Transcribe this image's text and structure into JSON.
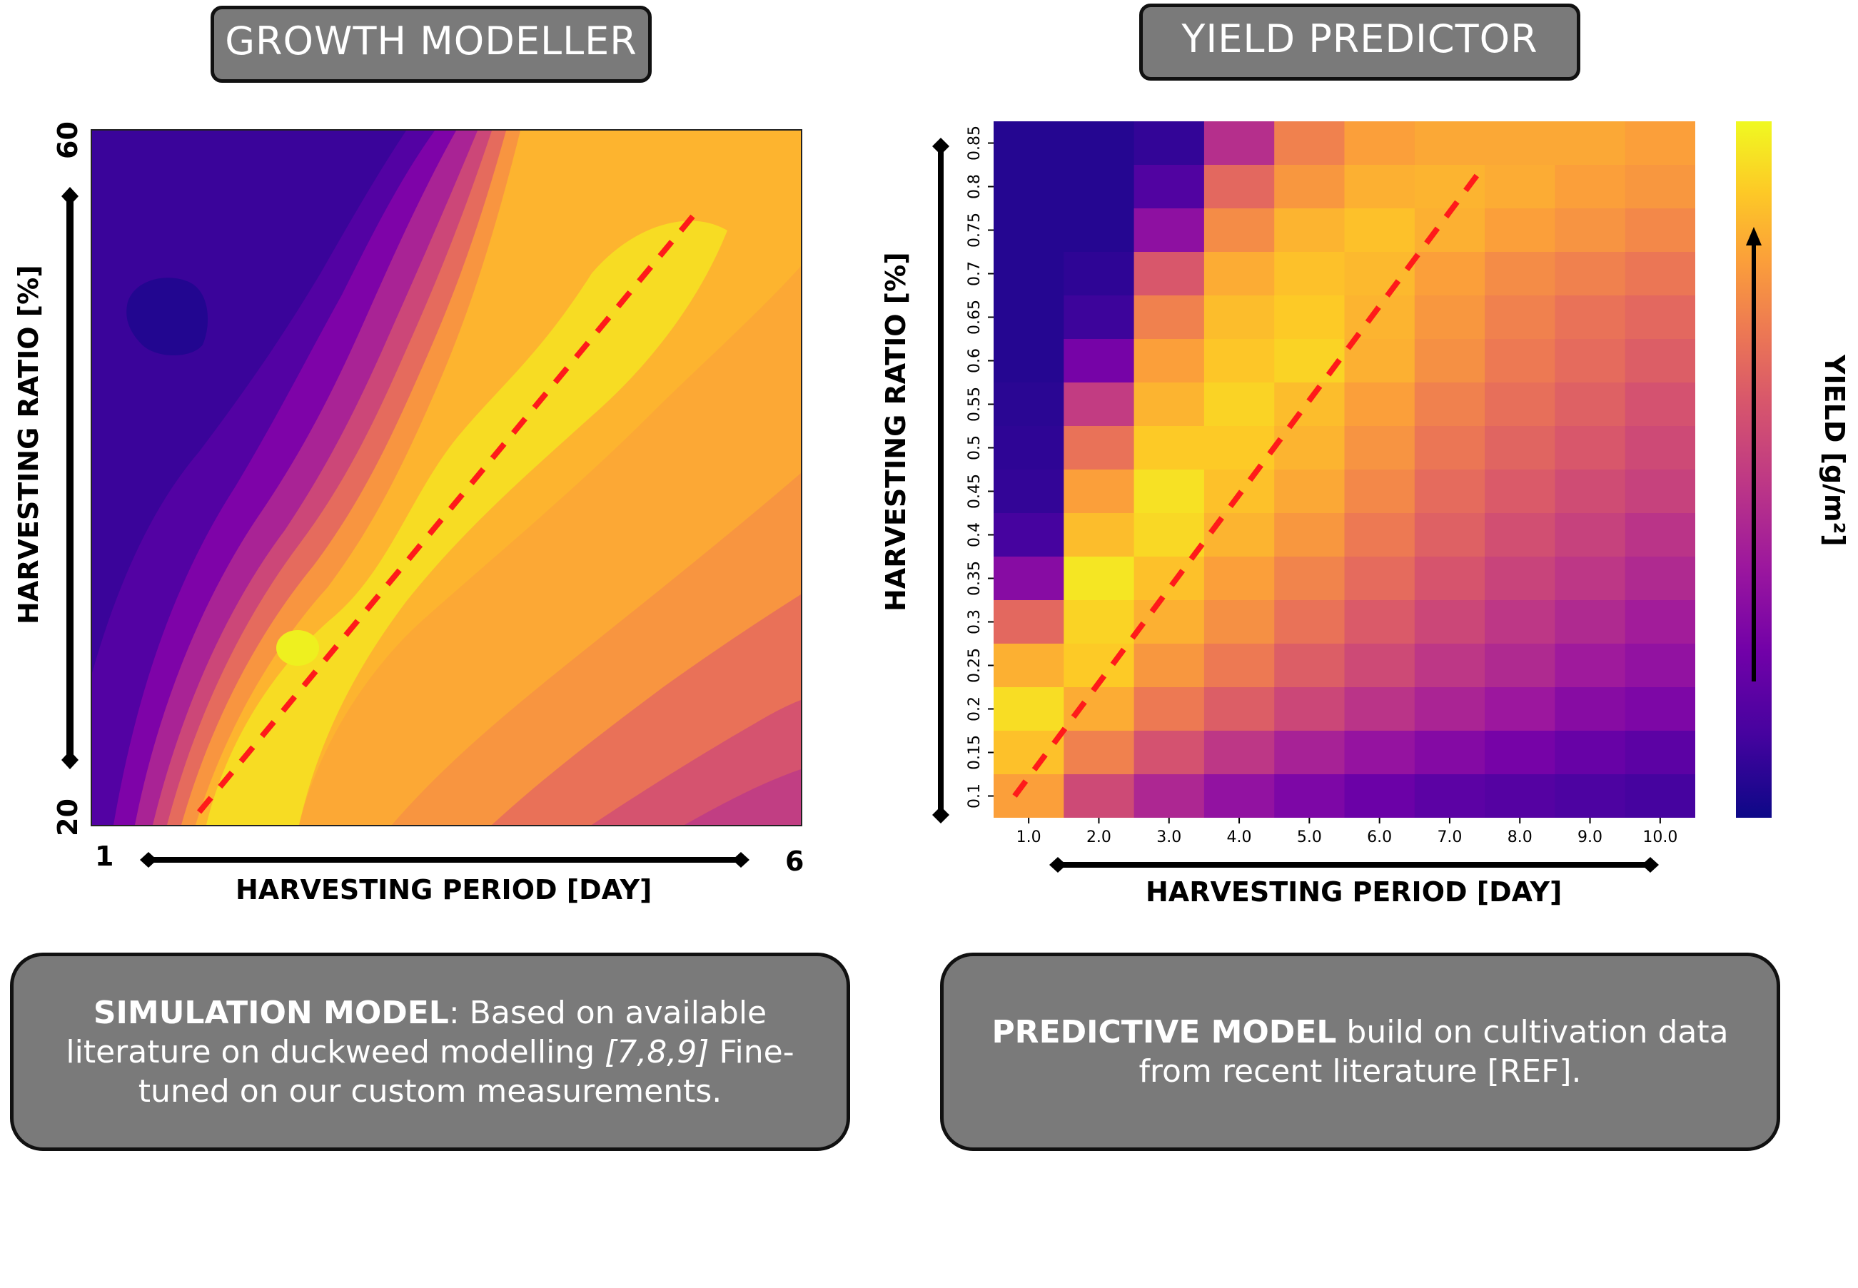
{
  "left": {
    "title": "GROWTH MODELLER",
    "y_label": "HARVESTING RATIO [%]",
    "x_label": "HARVESTING PERIOD [DAY]",
    "y_min_label": "20",
    "y_max_label": "60",
    "x_min_label": "1",
    "x_max_label": "6",
    "info_bold": "SIMULATION MODEL",
    "info_text_1": ": Based on available literature on duckweed modelling ",
    "info_italic": "[7,8,9]",
    "info_text_2": " Fine-tuned on our custom measurements."
  },
  "right": {
    "title": "YIELD PREDICTOR",
    "y_label": "HARVESTING RATIO [%]",
    "x_label": "HARVESTING PERIOD [DAY]",
    "colorbar_label": "YIELD [g/m²]",
    "info_bold": "PREDICTIVE MODEL",
    "info_text": " build on cultivation data from recent literature [REF]."
  },
  "colors": {
    "optimum_line": "#ff1a1a",
    "panel_border": "#111111",
    "box_fill": "#7a7a7a"
  },
  "chart_data": [
    {
      "type": "heatmap",
      "title": "GROWTH MODELLER",
      "xlabel": "HARVESTING PERIOD [DAY]",
      "ylabel": "HARVESTING RATIO [%]",
      "xlim": [
        1,
        6
      ],
      "ylim": [
        20,
        60
      ],
      "colormap": "plasma",
      "style": "filled contour",
      "optimum_line": {
        "x": [
          1.8,
          5.1
        ],
        "y": [
          21,
          53
        ]
      }
    },
    {
      "type": "heatmap",
      "title": "YIELD PREDICTOR",
      "xlabel": "HARVESTING PERIOD [DAY]",
      "ylabel": "HARVESTING RATIO [%]",
      "colorbar_label": "YIELD [g/m²]",
      "colormap": "plasma",
      "x": [
        "1.0",
        "2.0",
        "3.0",
        "4.0",
        "5.0",
        "6.0",
        "7.0",
        "8.0",
        "9.0",
        "10.0"
      ],
      "y": [
        "0.85",
        "0.8",
        "0.75",
        "0.7",
        "0.65",
        "0.6",
        "0.55",
        "0.5",
        "0.45",
        "0.4",
        "0.35",
        "0.3",
        "0.25",
        "0.2",
        "0.15",
        "0.1"
      ],
      "values": [
        [
          0.05,
          0.05,
          0.08,
          0.45,
          0.72,
          0.8,
          0.82,
          0.82,
          0.82,
          0.8
        ],
        [
          0.05,
          0.05,
          0.15,
          0.65,
          0.78,
          0.84,
          0.85,
          0.83,
          0.8,
          0.78
        ],
        [
          0.05,
          0.05,
          0.32,
          0.75,
          0.85,
          0.88,
          0.84,
          0.8,
          0.77,
          0.74
        ],
        [
          0.05,
          0.07,
          0.6,
          0.83,
          0.88,
          0.86,
          0.8,
          0.75,
          0.72,
          0.69
        ],
        [
          0.05,
          0.1,
          0.72,
          0.87,
          0.9,
          0.85,
          0.78,
          0.72,
          0.68,
          0.65
        ],
        [
          0.05,
          0.25,
          0.8,
          0.89,
          0.92,
          0.84,
          0.76,
          0.7,
          0.66,
          0.62
        ],
        [
          0.06,
          0.5,
          0.85,
          0.92,
          0.87,
          0.8,
          0.72,
          0.67,
          0.63,
          0.58
        ],
        [
          0.07,
          0.68,
          0.9,
          0.9,
          0.85,
          0.77,
          0.69,
          0.64,
          0.6,
          0.55
        ],
        [
          0.08,
          0.8,
          0.95,
          0.88,
          0.82,
          0.74,
          0.66,
          0.61,
          0.56,
          0.52
        ],
        [
          0.12,
          0.87,
          0.93,
          0.85,
          0.78,
          0.7,
          0.63,
          0.57,
          0.52,
          0.47
        ],
        [
          0.3,
          0.96,
          0.88,
          0.8,
          0.73,
          0.66,
          0.59,
          0.53,
          0.48,
          0.43
        ],
        [
          0.65,
          0.92,
          0.84,
          0.76,
          0.68,
          0.61,
          0.54,
          0.48,
          0.43,
          0.38
        ],
        [
          0.84,
          0.9,
          0.78,
          0.7,
          0.62,
          0.55,
          0.48,
          0.43,
          0.37,
          0.33
        ],
        [
          0.94,
          0.83,
          0.7,
          0.62,
          0.54,
          0.47,
          0.41,
          0.36,
          0.3,
          0.27
        ],
        [
          0.88,
          0.72,
          0.58,
          0.48,
          0.4,
          0.34,
          0.29,
          0.25,
          0.21,
          0.18
        ],
        [
          0.8,
          0.55,
          0.42,
          0.33,
          0.27,
          0.22,
          0.18,
          0.16,
          0.14,
          0.12
        ]
      ],
      "optimum_line": {
        "x_index": [
          0.3,
          7.0
        ],
        "y_index": [
          15.5,
          1.0
        ]
      }
    }
  ]
}
